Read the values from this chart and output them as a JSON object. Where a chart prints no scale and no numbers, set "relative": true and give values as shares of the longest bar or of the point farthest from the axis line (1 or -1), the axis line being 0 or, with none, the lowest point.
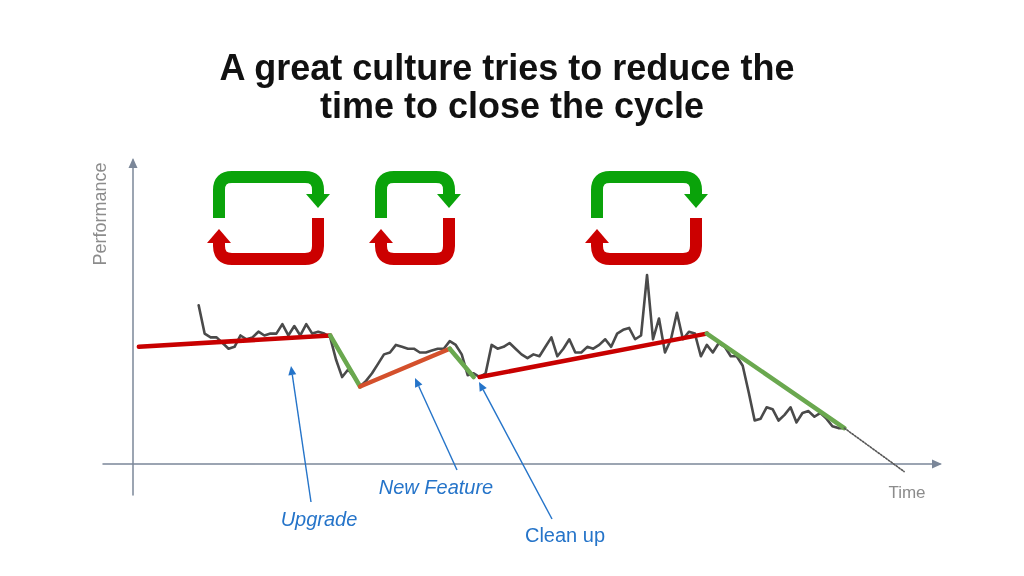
{
  "chart_data": {
    "type": "line",
    "title": "A great culture tries to reduce the time to close the cycle",
    "xlabel": "Time",
    "ylabel": "Performance",
    "annotations": [
      "Upgrade",
      "New Feature",
      "Clean up"
    ],
    "relative": true,
    "grid": false,
    "line_style": "solid",
    "categories": [
      null,
      null,
      null,
      null,
      null,
      null,
      null,
      null,
      null,
      null,
      null,
      null,
      null,
      null,
      null,
      null,
      null,
      null,
      null,
      null,
      null,
      null,
      null,
      null,
      null,
      null,
      null,
      null,
      null,
      null,
      null,
      null,
      null,
      null,
      null,
      null,
      null,
      null,
      null,
      null,
      null,
      null,
      null,
      null,
      null,
      null,
      null,
      null,
      null,
      null,
      null,
      null,
      null,
      null,
      null,
      null,
      null,
      null,
      null,
      null,
      null,
      null,
      null,
      null,
      null,
      null,
      null,
      null,
      null,
      null,
      null,
      null,
      null,
      null,
      null,
      null,
      null,
      null,
      null,
      null,
      null,
      null,
      null,
      null,
      null,
      null,
      null,
      null,
      null,
      null,
      null,
      null,
      null,
      null,
      null,
      null,
      null,
      null,
      null,
      null,
      null,
      null,
      null,
      null,
      null,
      null,
      null,
      null,
      null,
      null,
      null,
      null,
      null,
      null,
      null,
      null,
      null,
      null,
      null,
      null,
      null,
      null,
      null,
      null,
      null,
      null,
      null,
      null,
      null,
      null,
      null,
      null,
      null,
      null,
      null,
      null,
      null,
      null,
      null,
      null,
      null
    ],
    "series": [
      {
        "color": "#4a4a4a",
        "values": [
          null,
          null,
          null,
          null,
          null,
          null,
          null,
          null,
          null,
          null,
          null,
          null,
          null,
          null,
          null,
          null,
          0.84,
          0.69,
          0.67,
          0.67,
          0.64,
          0.61,
          0.62,
          0.68,
          0.66,
          0.67,
          0.7,
          0.68,
          0.69,
          0.69,
          0.74,
          0.68,
          0.73,
          0.68,
          0.74,
          0.69,
          0.7,
          0.69,
          0.67,
          0.55,
          0.46,
          0.5,
          0.46,
          0.41,
          0.44,
          0.48,
          0.53,
          0.58,
          0.59,
          0.63,
          0.62,
          0.61,
          0.61,
          0.59,
          0.59,
          0.6,
          0.61,
          0.61,
          0.65,
          0.63,
          0.58,
          0.47,
          0.48,
          0.46,
          0.48,
          0.63,
          0.61,
          0.62,
          0.64,
          0.61,
          0.58,
          0.56,
          0.58,
          0.57,
          0.62,
          0.67,
          0.57,
          0.61,
          0.66,
          0.59,
          0.59,
          0.62,
          0.61,
          0.63,
          0.66,
          0.62,
          0.69,
          0.71,
          0.72,
          0.66,
          0.68,
          1,
          0.66,
          0.77,
          0.59,
          0.66,
          0.8,
          0.66,
          0.7,
          0.69,
          0.57,
          0.63,
          0.59,
          0.64,
          0.62,
          0.57,
          0.57,
          0.52,
          0.38,
          0.23,
          0.24,
          0.3,
          0.29,
          0.23,
          0.26,
          0.3,
          0.22,
          0.27,
          0.28,
          0.25,
          0.27,
          0.24,
          0.2,
          0.19,
          0.19,
          null,
          null,
          null,
          null,
          null,
          null,
          null,
          null,
          null,
          null,
          null,
          null,
          null,
          null,
          null,
          null
        ]
      },
      {
        "color": "#c80000",
        "values": [
          null,
          null,
          null,
          null,
          null,
          null,
          0.62,
          null,
          null,
          null,
          null,
          null,
          null,
          null,
          null,
          null,
          null,
          null,
          null,
          null,
          null,
          null,
          null,
          null,
          null,
          null,
          null,
          null,
          null,
          null,
          null,
          null,
          null,
          null,
          null,
          null,
          null,
          null,
          0.68,
          null,
          null,
          null,
          null,
          null,
          null,
          null,
          null,
          null,
          null,
          null,
          null,
          null,
          null,
          null,
          null,
          null,
          null,
          null,
          null,
          null,
          null,
          null,
          null,
          null,
          null,
          null,
          null,
          null,
          null,
          null,
          null,
          null,
          null,
          null,
          null,
          null,
          null,
          null,
          null,
          null,
          null,
          null,
          null,
          null,
          null,
          null,
          null,
          null,
          null,
          null,
          null,
          null,
          null,
          null,
          null,
          null,
          null,
          null,
          null,
          null,
          null,
          null,
          null,
          null,
          null,
          null,
          null,
          null,
          null,
          null,
          null,
          null,
          null,
          null,
          null,
          null,
          null,
          null,
          null,
          null,
          null,
          null,
          null,
          null,
          null,
          null,
          null,
          null,
          null,
          null,
          null,
          null,
          null,
          null,
          null,
          null,
          null,
          null,
          null,
          null,
          null
        ]
      },
      {
        "color": "#6aa84f",
        "values": [
          null,
          null,
          null,
          null,
          null,
          null,
          null,
          null,
          null,
          null,
          null,
          null,
          null,
          null,
          null,
          null,
          null,
          null,
          null,
          null,
          null,
          null,
          null,
          null,
          null,
          null,
          null,
          null,
          null,
          null,
          null,
          null,
          null,
          null,
          null,
          null,
          null,
          null,
          0.68,
          null,
          null,
          null,
          null,
          0.41,
          null,
          null,
          null,
          null,
          null,
          null,
          null,
          null,
          null,
          null,
          null,
          null,
          null,
          null,
          null,
          null,
          null,
          null,
          null,
          null,
          null,
          null,
          null,
          null,
          null,
          null,
          null,
          null,
          null,
          null,
          null,
          null,
          null,
          null,
          null,
          null,
          null,
          null,
          null,
          null,
          null,
          null,
          null,
          null,
          null,
          null,
          null,
          null,
          null,
          null,
          null,
          null,
          null,
          null,
          null,
          null,
          null,
          null,
          null,
          null,
          null,
          null,
          null,
          null,
          null,
          null,
          null,
          null,
          null,
          null,
          null,
          null,
          null,
          null,
          null,
          null,
          null,
          null,
          null,
          null,
          null,
          null,
          null,
          null,
          null,
          null,
          null,
          null,
          null,
          null,
          null,
          null,
          null,
          null,
          null,
          null,
          null
        ]
      },
      {
        "color": "#d4502c",
        "values": [
          null,
          null,
          null,
          null,
          null,
          null,
          null,
          null,
          null,
          null,
          null,
          null,
          null,
          null,
          null,
          null,
          null,
          null,
          null,
          null,
          null,
          null,
          null,
          null,
          null,
          null,
          null,
          null,
          null,
          null,
          null,
          null,
          null,
          null,
          null,
          null,
          null,
          null,
          null,
          null,
          null,
          null,
          null,
          0.41,
          null,
          null,
          null,
          null,
          null,
          null,
          null,
          null,
          null,
          null,
          null,
          null,
          null,
          null,
          0.61,
          null,
          null,
          null,
          null,
          null,
          null,
          null,
          null,
          null,
          null,
          null,
          null,
          null,
          null,
          null,
          null,
          null,
          null,
          null,
          null,
          null,
          null,
          null,
          null,
          null,
          null,
          null,
          null,
          null,
          null,
          null,
          null,
          null,
          null,
          null,
          null,
          null,
          null,
          null,
          null,
          null,
          null,
          null,
          null,
          null,
          null,
          null,
          null,
          null,
          null,
          null,
          null,
          null,
          null,
          null,
          null,
          null,
          null,
          null,
          null,
          null,
          null,
          null,
          null,
          null,
          null,
          null,
          null,
          null,
          null,
          null,
          null,
          null,
          null,
          null,
          null,
          null,
          null,
          null,
          null,
          null,
          null
        ]
      },
      {
        "color": "#6aa84f",
        "values": [
          null,
          null,
          null,
          null,
          null,
          null,
          null,
          null,
          null,
          null,
          null,
          null,
          null,
          null,
          null,
          null,
          null,
          null,
          null,
          null,
          null,
          null,
          null,
          null,
          null,
          null,
          null,
          null,
          null,
          null,
          null,
          null,
          null,
          null,
          null,
          null,
          null,
          null,
          null,
          null,
          null,
          null,
          null,
          null,
          null,
          null,
          null,
          null,
          null,
          null,
          null,
          null,
          null,
          null,
          null,
          null,
          null,
          null,
          0.61,
          null,
          null,
          null,
          0.46,
          null,
          null,
          null,
          null,
          null,
          null,
          null,
          null,
          null,
          null,
          null,
          null,
          null,
          null,
          null,
          null,
          null,
          null,
          null,
          null,
          null,
          null,
          null,
          null,
          null,
          null,
          null,
          null,
          null,
          null,
          null,
          null,
          null,
          null,
          null,
          null,
          null,
          null,
          null,
          null,
          null,
          null,
          null,
          null,
          null,
          null,
          null,
          null,
          null,
          null,
          null,
          null,
          null,
          null,
          null,
          null,
          null,
          null,
          null,
          null,
          null,
          null,
          null,
          null,
          null,
          null,
          null,
          null,
          null,
          null,
          null,
          null,
          null,
          null,
          null,
          null,
          null,
          null
        ]
      },
      {
        "color": "#c80000",
        "values": [
          null,
          null,
          null,
          null,
          null,
          null,
          null,
          null,
          null,
          null,
          null,
          null,
          null,
          null,
          null,
          null,
          null,
          null,
          null,
          null,
          null,
          null,
          null,
          null,
          null,
          null,
          null,
          null,
          null,
          null,
          null,
          null,
          null,
          null,
          null,
          null,
          null,
          null,
          null,
          null,
          null,
          null,
          null,
          null,
          null,
          null,
          null,
          null,
          null,
          null,
          null,
          null,
          null,
          null,
          null,
          null,
          null,
          null,
          null,
          null,
          null,
          null,
          null,
          0.46,
          null,
          null,
          null,
          null,
          null,
          null,
          null,
          null,
          null,
          null,
          null,
          null,
          null,
          null,
          null,
          null,
          null,
          null,
          null,
          null,
          null,
          null,
          null,
          null,
          null,
          null,
          null,
          null,
          null,
          null,
          null,
          null,
          null,
          null,
          null,
          null,
          null,
          0.69,
          null,
          null,
          null,
          null,
          null,
          null,
          null,
          null,
          null,
          null,
          null,
          null,
          null,
          null,
          null,
          null,
          null,
          null,
          null,
          null,
          null,
          null,
          null,
          null,
          null,
          null,
          null,
          null,
          null,
          null,
          null,
          null,
          null,
          null,
          null,
          null,
          null,
          null,
          null
        ]
      },
      {
        "color": "#6aa84f",
        "values": [
          null,
          null,
          null,
          null,
          null,
          null,
          null,
          null,
          null,
          null,
          null,
          null,
          null,
          null,
          null,
          null,
          null,
          null,
          null,
          null,
          null,
          null,
          null,
          null,
          null,
          null,
          null,
          null,
          null,
          null,
          null,
          null,
          null,
          null,
          null,
          null,
          null,
          null,
          null,
          null,
          null,
          null,
          null,
          null,
          null,
          null,
          null,
          null,
          null,
          null,
          null,
          null,
          null,
          null,
          null,
          null,
          null,
          null,
          null,
          null,
          null,
          null,
          null,
          null,
          null,
          null,
          null,
          null,
          null,
          null,
          null,
          null,
          null,
          null,
          null,
          null,
          null,
          null,
          null,
          null,
          null,
          null,
          null,
          null,
          null,
          null,
          null,
          null,
          null,
          null,
          null,
          null,
          null,
          null,
          null,
          null,
          null,
          null,
          null,
          null,
          null,
          0.69,
          null,
          null,
          null,
          null,
          null,
          null,
          null,
          null,
          null,
          null,
          null,
          null,
          null,
          null,
          null,
          null,
          null,
          null,
          null,
          null,
          null,
          null,
          0.19,
          null,
          null,
          null,
          null,
          null,
          null,
          null,
          null,
          null,
          null,
          null,
          null,
          null,
          null,
          null,
          null
        ]
      },
      {
        "color": "#555555",
        "line_style": "dotted",
        "values": [
          null,
          null,
          null,
          null,
          null,
          null,
          null,
          null,
          null,
          null,
          null,
          null,
          null,
          null,
          null,
          null,
          null,
          null,
          null,
          null,
          null,
          null,
          null,
          null,
          null,
          null,
          null,
          null,
          null,
          null,
          null,
          null,
          null,
          null,
          null,
          null,
          null,
          null,
          null,
          null,
          null,
          null,
          null,
          null,
          null,
          null,
          null,
          null,
          null,
          null,
          null,
          null,
          null,
          null,
          null,
          null,
          null,
          null,
          null,
          null,
          null,
          null,
          null,
          null,
          null,
          null,
          null,
          null,
          null,
          null,
          null,
          null,
          null,
          null,
          null,
          null,
          null,
          null,
          null,
          null,
          null,
          null,
          null,
          null,
          null,
          null,
          null,
          null,
          null,
          null,
          null,
          null,
          null,
          null,
          null,
          null,
          null,
          null,
          null,
          null,
          null,
          null,
          null,
          null,
          null,
          null,
          null,
          null,
          null,
          null,
          null,
          null,
          null,
          null,
          null,
          null,
          null,
          null,
          null,
          null,
          null,
          null,
          null,
          null,
          0.19,
          null,
          null,
          null,
          null,
          null,
          null,
          null,
          null,
          null,
          -0.04,
          null,
          null,
          null,
          null,
          null,
          null
        ]
      }
    ]
  }
}
